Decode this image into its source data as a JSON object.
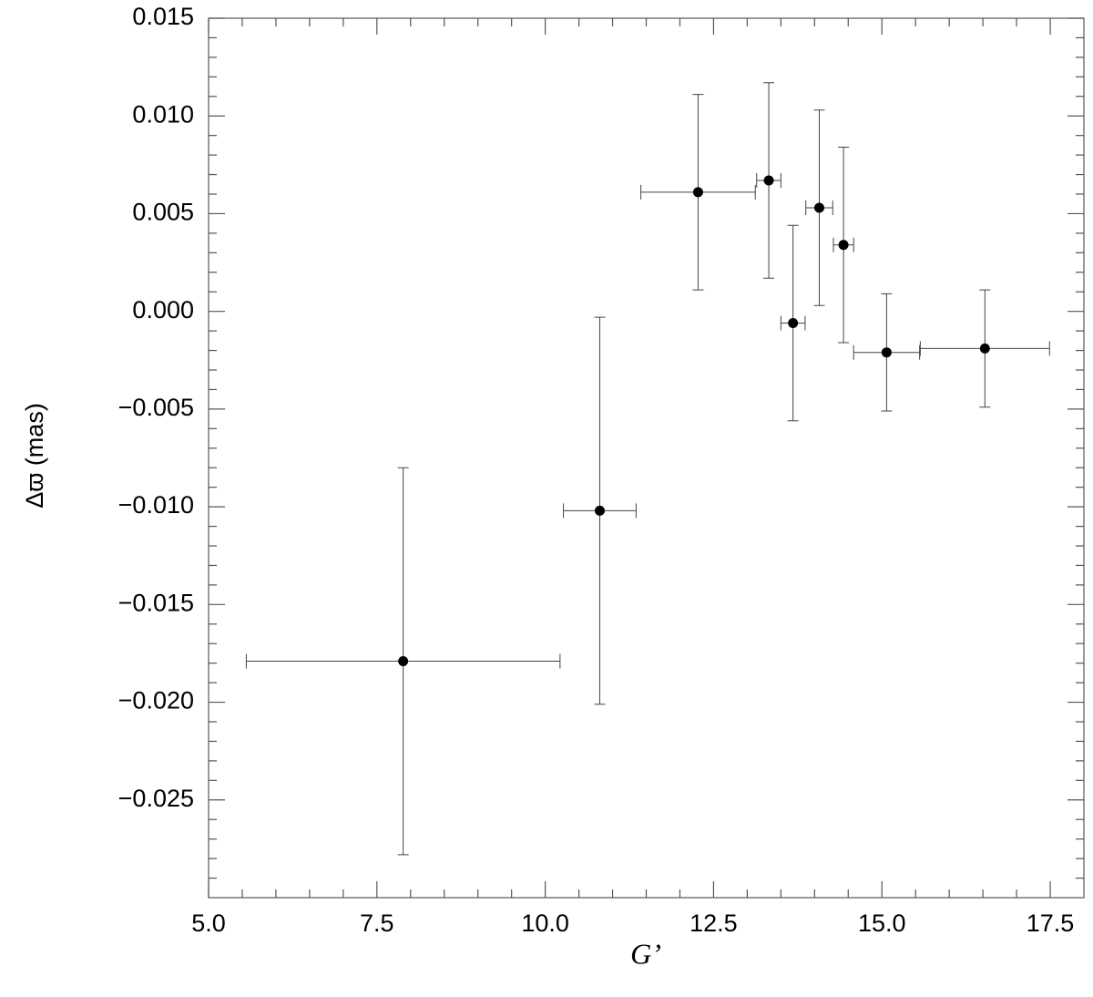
{
  "chart_data": {
    "type": "scatter",
    "xlabel": "G’",
    "ylabel": "Δϖ (mas)",
    "xlim": [
      5,
      18
    ],
    "ylim": [
      -0.03,
      0.015
    ],
    "xticks": [
      {
        "value": 5,
        "label": "5.0"
      },
      7.5,
      {
        "value": 10,
        "label": "10.0"
      },
      12.5,
      {
        "value": 15,
        "label": "15.0"
      },
      17.5
    ],
    "yticks": [
      {
        "value": -0.025,
        "label": "−0.025"
      },
      {
        "value": -0.02,
        "label": "−0.020"
      },
      {
        "value": -0.015,
        "label": "−0.015"
      },
      {
        "value": -0.01,
        "label": "−0.010"
      },
      {
        "value": -0.005,
        "label": "−0.005"
      },
      {
        "value": 0,
        "label": "0.000"
      },
      0.005,
      {
        "value": 0.01,
        "label": "0.010"
      },
      0.015
    ],
    "series": [
      {
        "color": "#000000",
        "x": [
          7.89,
          10.81,
          12.27,
          13.32,
          13.68,
          14.07,
          14.43,
          15.07,
          16.53
        ],
        "values": [
          -0.0179,
          -0.0102,
          0.0061,
          0.0067,
          -0.0006,
          0.0053,
          0.0034,
          -0.0021,
          -0.0019
        ],
        "x_err": [
          2.33,
          0.54,
          0.85,
          0.18,
          0.18,
          0.2,
          0.15,
          0.49,
          0.96
        ],
        "y_err": [
          0.0099,
          0.0099,
          0.005,
          0.005,
          0.005,
          0.005,
          0.005,
          0.003,
          0.003
        ]
      }
    ]
  }
}
